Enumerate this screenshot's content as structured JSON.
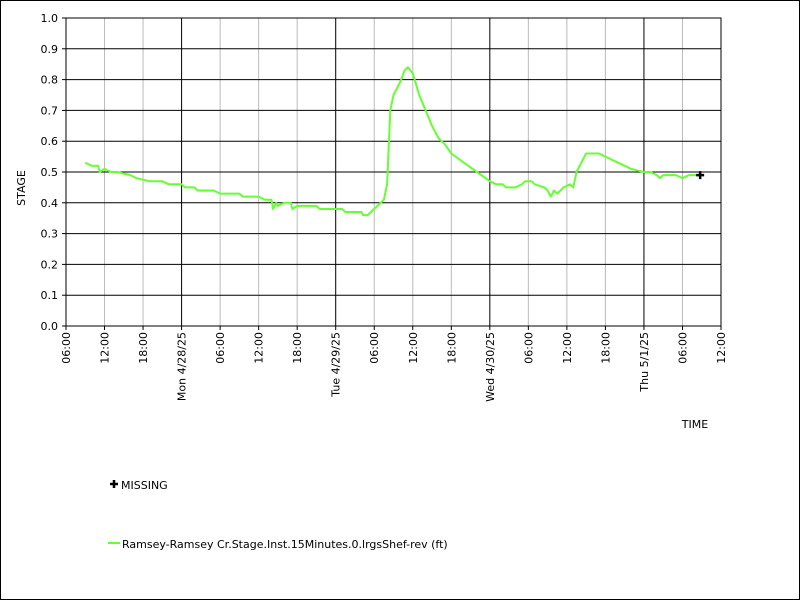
{
  "chart_data": {
    "type": "line",
    "title": "",
    "xlabel": "TIME",
    "ylabel": "STAGE",
    "ylim": [
      0.0,
      1.0
    ],
    "xlim": [
      "2025-04-27T06:00",
      "2025-05-01T12:00"
    ],
    "yticks": [
      "0.0",
      "0.1",
      "0.2",
      "0.3",
      "0.4",
      "0.5",
      "0.6",
      "0.7",
      "0.8",
      "0.9",
      "1.0"
    ],
    "xticks": [
      "06:00",
      "12:00",
      "18:00",
      "Mon 4/28/25",
      "06:00",
      "12:00",
      "18:00",
      "Tue 4/29/25",
      "06:00",
      "12:00",
      "18:00",
      "Wed 4/30/25",
      "06:00",
      "12:00",
      "18:00",
      "Thu 5/1/25",
      "06:00",
      "12:00"
    ],
    "grid": true,
    "series_color": "#66ff33",
    "legend": {
      "missing_label": "MISSING",
      "series_label": "Ramsey-Ramsey Cr.Stage.Inst.15Minutes.0.lrgsShef-rev (ft)"
    },
    "missing_points": [
      {
        "x": "2025-05-01T08:45",
        "y": 0.49
      }
    ],
    "series": [
      {
        "name": "Ramsey-Ramsey Cr.Stage.Inst.15Minutes.0.lrgsShef-rev (ft)",
        "points": [
          [
            "2025-04-27T09:00",
            0.53
          ],
          [
            "2025-04-27T10:00",
            0.52
          ],
          [
            "2025-04-27T11:00",
            0.52
          ],
          [
            "2025-04-27T11:15",
            0.5
          ],
          [
            "2025-04-27T12:00",
            0.51
          ],
          [
            "2025-04-27T13:00",
            0.5
          ],
          [
            "2025-04-27T14:00",
            0.5
          ],
          [
            "2025-04-27T16:00",
            0.49
          ],
          [
            "2025-04-27T17:00",
            0.48
          ],
          [
            "2025-04-27T19:00",
            0.47
          ],
          [
            "2025-04-27T21:00",
            0.47
          ],
          [
            "2025-04-27T22:00",
            0.46
          ],
          [
            "2025-04-28T00:00",
            0.46
          ],
          [
            "2025-04-28T00:30",
            0.45
          ],
          [
            "2025-04-28T02:00",
            0.45
          ],
          [
            "2025-04-28T02:30",
            0.44
          ],
          [
            "2025-04-28T05:00",
            0.44
          ],
          [
            "2025-04-28T06:00",
            0.43
          ],
          [
            "2025-04-28T09:00",
            0.43
          ],
          [
            "2025-04-28T09:30",
            0.42
          ],
          [
            "2025-04-28T12:00",
            0.42
          ],
          [
            "2025-04-28T13:00",
            0.41
          ],
          [
            "2025-04-28T14:00",
            0.41
          ],
          [
            "2025-04-28T14:15",
            0.38
          ],
          [
            "2025-04-28T14:45",
            0.4
          ],
          [
            "2025-04-28T15:00",
            0.39
          ],
          [
            "2025-04-28T16:00",
            0.4
          ],
          [
            "2025-04-28T17:00",
            0.4
          ],
          [
            "2025-04-28T17:15",
            0.38
          ],
          [
            "2025-04-28T18:00",
            0.39
          ],
          [
            "2025-04-28T21:00",
            0.39
          ],
          [
            "2025-04-28T21:30",
            0.38
          ],
          [
            "2025-04-29T01:00",
            0.38
          ],
          [
            "2025-04-29T01:30",
            0.37
          ],
          [
            "2025-04-29T04:00",
            0.37
          ],
          [
            "2025-04-29T04:15",
            0.36
          ],
          [
            "2025-04-29T05:00",
            0.36
          ],
          [
            "2025-04-29T05:30",
            0.37
          ],
          [
            "2025-04-29T06:30",
            0.39
          ],
          [
            "2025-04-29T07:30",
            0.41
          ],
          [
            "2025-04-29T08:00",
            0.46
          ],
          [
            "2025-04-29T08:30",
            0.7
          ],
          [
            "2025-04-29T09:00",
            0.75
          ],
          [
            "2025-04-29T10:00",
            0.79
          ],
          [
            "2025-04-29T10:45",
            0.83
          ],
          [
            "2025-04-29T11:15",
            0.84
          ],
          [
            "2025-04-29T12:00",
            0.82
          ],
          [
            "2025-04-29T13:00",
            0.75
          ],
          [
            "2025-04-29T14:00",
            0.7
          ],
          [
            "2025-04-29T15:00",
            0.65
          ],
          [
            "2025-04-29T16:00",
            0.61
          ],
          [
            "2025-04-29T17:00",
            0.59
          ],
          [
            "2025-04-29T18:00",
            0.56
          ],
          [
            "2025-04-29T20:00",
            0.53
          ],
          [
            "2025-04-29T22:00",
            0.5
          ],
          [
            "2025-04-30T00:00",
            0.47
          ],
          [
            "2025-04-30T01:00",
            0.46
          ],
          [
            "2025-04-30T02:00",
            0.46
          ],
          [
            "2025-04-30T02:30",
            0.45
          ],
          [
            "2025-04-30T04:00",
            0.45
          ],
          [
            "2025-04-30T05:00",
            0.46
          ],
          [
            "2025-04-30T05:30",
            0.47
          ],
          [
            "2025-04-30T06:30",
            0.47
          ],
          [
            "2025-04-30T07:00",
            0.46
          ],
          [
            "2025-04-30T08:30",
            0.45
          ],
          [
            "2025-04-30T09:00",
            0.44
          ],
          [
            "2025-04-30T09:30",
            0.42
          ],
          [
            "2025-04-30T10:00",
            0.44
          ],
          [
            "2025-04-30T10:30",
            0.43
          ],
          [
            "2025-04-30T11:30",
            0.45
          ],
          [
            "2025-04-30T12:30",
            0.46
          ],
          [
            "2025-04-30T13:00",
            0.45
          ],
          [
            "2025-04-30T13:30",
            0.5
          ],
          [
            "2025-04-30T14:30",
            0.54
          ],
          [
            "2025-04-30T15:00",
            0.56
          ],
          [
            "2025-04-30T17:00",
            0.56
          ],
          [
            "2025-04-30T18:00",
            0.55
          ],
          [
            "2025-04-30T19:00",
            0.54
          ],
          [
            "2025-04-30T20:00",
            0.53
          ],
          [
            "2025-04-30T21:00",
            0.52
          ],
          [
            "2025-04-30T22:00",
            0.51
          ],
          [
            "2025-05-01T00:00",
            0.5
          ],
          [
            "2025-05-01T01:00",
            0.5
          ],
          [
            "2025-05-01T02:00",
            0.49
          ],
          [
            "2025-05-01T02:30",
            0.48
          ],
          [
            "2025-05-01T03:00",
            0.49
          ],
          [
            "2025-05-01T05:00",
            0.49
          ],
          [
            "2025-05-01T06:00",
            0.48
          ],
          [
            "2025-05-01T07:00",
            0.49
          ],
          [
            "2025-05-01T08:30",
            0.49
          ]
        ]
      }
    ]
  }
}
